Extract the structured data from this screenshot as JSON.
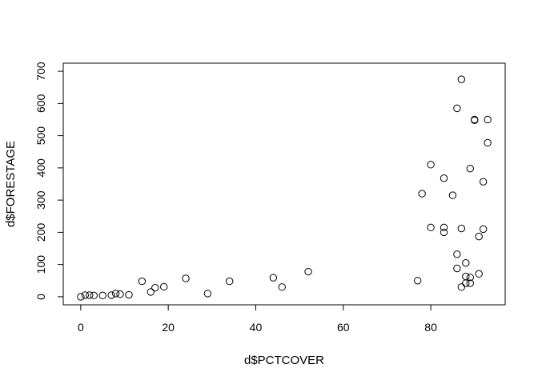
{
  "chart_data": {
    "type": "scatter",
    "title": "",
    "xlabel": "d$PCTCOVER",
    "ylabel": "d$FORESTAGE",
    "xlim": [
      -4,
      97
    ],
    "ylim": [
      -25,
      725
    ],
    "x_ticks": [
      0,
      20,
      40,
      60,
      80
    ],
    "y_ticks": [
      0,
      100,
      200,
      300,
      400,
      500,
      600,
      700
    ],
    "x_tick_labels": [
      "0",
      "20",
      "40",
      "60",
      "80"
    ],
    "y_tick_labels": [
      "0",
      "100",
      "200",
      "300",
      "400",
      "500",
      "600",
      "700"
    ],
    "grid": false,
    "marker": "open-circle",
    "series": [
      {
        "points": [
          [
            0,
            0
          ],
          [
            1,
            5
          ],
          [
            2,
            5
          ],
          [
            3,
            4
          ],
          [
            5,
            4
          ],
          [
            7,
            5
          ],
          [
            8,
            10
          ],
          [
            9,
            8
          ],
          [
            11,
            6
          ],
          [
            14,
            48
          ],
          [
            16,
            15
          ],
          [
            17,
            28
          ],
          [
            19,
            31
          ],
          [
            24,
            57
          ],
          [
            29,
            10
          ],
          [
            34,
            48
          ],
          [
            44,
            59
          ],
          [
            46,
            30
          ],
          [
            52,
            78
          ],
          [
            77,
            50
          ],
          [
            78,
            320
          ],
          [
            80,
            410
          ],
          [
            80,
            215
          ],
          [
            83,
            368
          ],
          [
            83,
            215
          ],
          [
            83,
            200
          ],
          [
            85,
            315
          ],
          [
            86,
            585
          ],
          [
            86,
            132
          ],
          [
            86,
            88
          ],
          [
            87,
            675
          ],
          [
            87,
            212
          ],
          [
            87,
            30
          ],
          [
            88,
            105
          ],
          [
            88,
            63
          ],
          [
            88,
            42
          ],
          [
            89,
            398
          ],
          [
            89,
            60
          ],
          [
            89,
            42
          ],
          [
            90,
            550
          ],
          [
            90,
            548
          ],
          [
            91,
            187
          ],
          [
            91,
            71
          ],
          [
            92,
            357
          ],
          [
            92,
            210
          ],
          [
            93,
            550
          ],
          [
            93,
            478
          ]
        ]
      }
    ]
  }
}
